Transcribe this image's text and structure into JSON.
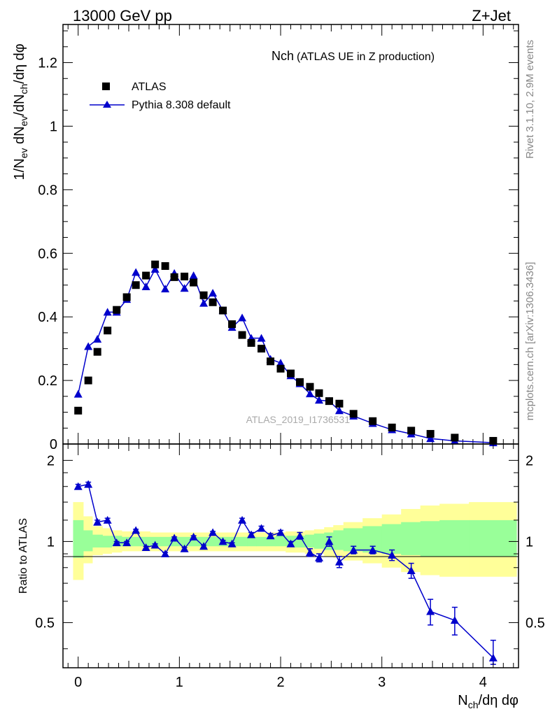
{
  "header": {
    "energy_label": "13000 GeV pp",
    "process_label": "Z+Jet"
  },
  "side_labels": {
    "rivet": "Rivet 3.1.10,  2.9M events",
    "source": "mcplots.cern.ch [arXiv:1306.3436]"
  },
  "colors": {
    "data_marker": "#000000",
    "mc_line": "#0000cc",
    "band_outer": "#ffff99",
    "band_inner": "#99ff99"
  },
  "chart_data": [
    {
      "type": "scatter",
      "title": "Nch",
      "subtitle": "(ATLAS UE in Z production)",
      "watermark": "ATLAS_2019_I1736531",
      "ylabel": "1/N_ev dN_ev/dN_ch/dη dφ",
      "xlim": [
        -0.15,
        4.35
      ],
      "ylim": [
        0,
        1.32
      ],
      "yticks": [
        0,
        0.2,
        0.4,
        0.6,
        0.8,
        1,
        1.2
      ],
      "ytick_labels": [
        "0",
        "0.2",
        "0.4",
        "0.6",
        "0.8",
        "1",
        "1.2"
      ],
      "legend_position": "top-left",
      "series": [
        {
          "name": "ATLAS",
          "marker": "square",
          "x": [
            0,
            0.1,
            0.19,
            0.29,
            0.38,
            0.48,
            0.57,
            0.67,
            0.76,
            0.86,
            0.95,
            1.05,
            1.14,
            1.24,
            1.33,
            1.43,
            1.52,
            1.62,
            1.71,
            1.81,
            1.9,
            2.0,
            2.1,
            2.19,
            2.29,
            2.38,
            2.48,
            2.58,
            2.72,
            2.91,
            3.1,
            3.29,
            3.48,
            3.72,
            4.1
          ],
          "y": [
            0.105,
            0.2,
            0.29,
            0.357,
            0.422,
            0.462,
            0.5,
            0.53,
            0.565,
            0.56,
            0.525,
            0.527,
            0.508,
            0.468,
            0.446,
            0.42,
            0.377,
            0.343,
            0.318,
            0.3,
            0.26,
            0.237,
            0.222,
            0.195,
            0.18,
            0.16,
            0.135,
            0.127,
            0.095,
            0.072,
            0.052,
            0.042,
            0.032,
            0.02,
            0.01
          ]
        },
        {
          "name": "Pythia 8.308 default",
          "marker": "triangle",
          "x": [
            0,
            0.1,
            0.19,
            0.29,
            0.38,
            0.48,
            0.57,
            0.67,
            0.76,
            0.86,
            0.95,
            1.05,
            1.14,
            1.24,
            1.33,
            1.43,
            1.52,
            1.62,
            1.71,
            1.81,
            1.9,
            2.0,
            2.1,
            2.19,
            2.29,
            2.38,
            2.48,
            2.58,
            2.72,
            2.91,
            3.1,
            3.29,
            3.48,
            3.72,
            4.1
          ],
          "y": [
            0.157,
            0.307,
            0.33,
            0.415,
            0.415,
            0.455,
            0.54,
            0.495,
            0.55,
            0.488,
            0.537,
            0.49,
            0.53,
            0.443,
            0.475,
            0.42,
            0.367,
            0.397,
            0.333,
            0.333,
            0.267,
            0.255,
            0.215,
            0.19,
            0.158,
            0.138,
            0.135,
            0.105,
            0.088,
            0.065,
            0.045,
            0.032,
            0.017,
            0.01,
            0.004
          ]
        }
      ]
    },
    {
      "type": "scatter",
      "title": "",
      "xlabel": "N_ch/dη dφ",
      "ylabel": "Ratio to ATLAS",
      "xlim": [
        -0.15,
        4.35
      ],
      "ylim": [
        0.34,
        2.3
      ],
      "log_y": true,
      "xticks": [
        0,
        1,
        2,
        3,
        4
      ],
      "xtick_labels": [
        "0",
        "1",
        "2",
        "3",
        "4"
      ],
      "yticks": [
        0.5,
        1,
        2
      ],
      "ytick_labels": [
        "0.5",
        "1",
        "2"
      ],
      "reference_line": 1,
      "bands": {
        "edges": [
          -0.05,
          0.05,
          0.14,
          0.24,
          0.33,
          0.43,
          0.52,
          0.62,
          0.71,
          0.81,
          0.9,
          1.0,
          1.1,
          1.19,
          1.29,
          1.38,
          1.48,
          1.57,
          1.67,
          1.76,
          1.86,
          1.95,
          2.05,
          2.14,
          2.24,
          2.33,
          2.43,
          2.52,
          2.62,
          2.81,
          3.0,
          3.19,
          3.38,
          3.57,
          3.86,
          4.33
        ],
        "outer_low": [
          0.72,
          0.83,
          0.89,
          0.9,
          0.91,
          0.92,
          0.92,
          0.92,
          0.92,
          0.92,
          0.92,
          0.92,
          0.92,
          0.92,
          0.92,
          0.92,
          0.92,
          0.92,
          0.92,
          0.92,
          0.92,
          0.92,
          0.91,
          0.91,
          0.9,
          0.9,
          0.88,
          0.87,
          0.85,
          0.83,
          0.8,
          0.77,
          0.75,
          0.74,
          0.74
        ],
        "outer_high": [
          1.4,
          1.24,
          1.14,
          1.12,
          1.1,
          1.09,
          1.09,
          1.09,
          1.08,
          1.08,
          1.08,
          1.08,
          1.08,
          1.08,
          1.08,
          1.08,
          1.08,
          1.08,
          1.08,
          1.08,
          1.08,
          1.08,
          1.09,
          1.09,
          1.1,
          1.11,
          1.13,
          1.15,
          1.18,
          1.22,
          1.26,
          1.32,
          1.36,
          1.38,
          1.4
        ],
        "inner_low": [
          0.87,
          0.92,
          0.95,
          0.95,
          0.96,
          0.96,
          0.96,
          0.96,
          0.96,
          0.96,
          0.96,
          0.96,
          0.96,
          0.96,
          0.96,
          0.96,
          0.96,
          0.96,
          0.96,
          0.96,
          0.96,
          0.96,
          0.96,
          0.95,
          0.95,
          0.94,
          0.93,
          0.93,
          0.92,
          0.91,
          0.9,
          0.89,
          0.88,
          0.88,
          0.88
        ],
        "inner_high": [
          1.2,
          1.1,
          1.06,
          1.05,
          1.05,
          1.04,
          1.04,
          1.04,
          1.04,
          1.04,
          1.04,
          1.04,
          1.04,
          1.04,
          1.04,
          1.04,
          1.04,
          1.04,
          1.04,
          1.04,
          1.04,
          1.05,
          1.05,
          1.05,
          1.06,
          1.07,
          1.08,
          1.1,
          1.12,
          1.14,
          1.16,
          1.18,
          1.19,
          1.2,
          1.2
        ]
      },
      "series": [
        {
          "name": "Pythia 8.308 default",
          "marker": "triangle",
          "x": [
            0,
            0.1,
            0.19,
            0.29,
            0.38,
            0.48,
            0.57,
            0.67,
            0.76,
            0.86,
            0.95,
            1.05,
            1.14,
            1.24,
            1.33,
            1.43,
            1.52,
            1.62,
            1.71,
            1.81,
            1.9,
            2.0,
            2.1,
            2.19,
            2.29,
            2.38,
            2.48,
            2.58,
            2.72,
            2.91,
            3.1,
            3.29,
            3.48,
            3.72,
            4.1
          ],
          "y": [
            1.6,
            1.63,
            1.18,
            1.2,
            0.99,
            0.99,
            1.1,
            0.95,
            0.97,
            0.9,
            1.03,
            0.94,
            1.04,
            0.96,
            1.08,
            1.0,
            0.98,
            1.2,
            1.06,
            1.12,
            1.05,
            1.08,
            0.98,
            1.05,
            0.91,
            0.87,
            1.0,
            0.84,
            0.93,
            0.93,
            0.89,
            0.78,
            0.55,
            0.51,
            0.37
          ],
          "yerr": [
            0.03,
            0.03,
            0.02,
            0.02,
            0.01,
            0.01,
            0.01,
            0.01,
            0.01,
            0.01,
            0.01,
            0.01,
            0.01,
            0.01,
            0.01,
            0.01,
            0.01,
            0.02,
            0.02,
            0.02,
            0.02,
            0.02,
            0.02,
            0.03,
            0.03,
            0.03,
            0.04,
            0.04,
            0.03,
            0.03,
            0.04,
            0.05,
            0.06,
            0.06,
            0.06
          ]
        }
      ]
    }
  ]
}
